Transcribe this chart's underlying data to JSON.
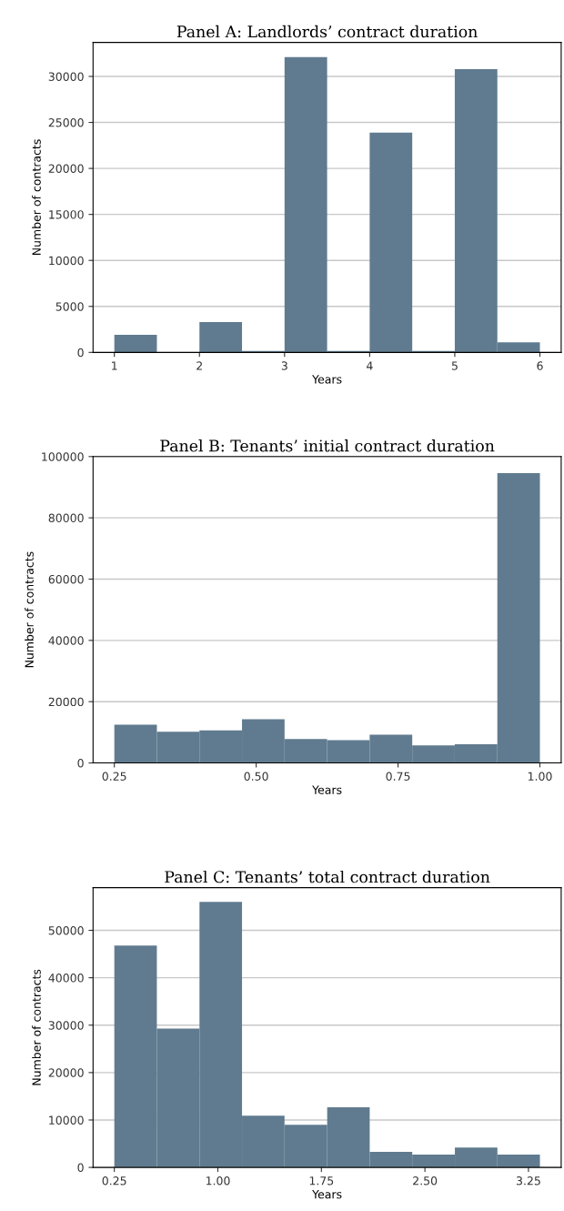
{
  "chart_data": [
    {
      "type": "histogram",
      "title": "Panel A: Landlords’ contract duration",
      "xlabel": "Years",
      "ylabel": "Number of contracts",
      "bins": [
        1,
        1.5,
        2,
        2.5,
        3,
        3.5,
        4,
        4.5,
        5,
        5.5,
        6
      ],
      "values": [
        1900,
        0,
        3300,
        150,
        32100,
        150,
        23900,
        150,
        30800,
        1100
      ],
      "color": "#607b8f",
      "xlim": [
        0.75,
        6.25
      ],
      "xticks": [
        1,
        2,
        3,
        4,
        5,
        6
      ],
      "ylim": [
        0,
        33700
      ],
      "yticks": [
        0,
        5000,
        10000,
        15000,
        20000,
        25000,
        30000
      ],
      "grid": "y"
    },
    {
      "type": "histogram",
      "title": "Panel B: Tenants’ initial contract duration",
      "xlabel": "Years",
      "ylabel": "Number of contracts",
      "bins": [
        0.25,
        0.325,
        0.4,
        0.475,
        0.55,
        0.625,
        0.7,
        0.775,
        0.85,
        0.925,
        1.0
      ],
      "values": [
        12500,
        10200,
        10600,
        14300,
        7800,
        7400,
        9200,
        5700,
        6100,
        94600
      ],
      "color": "#607b8f",
      "xlim": [
        0.2125,
        1.0375
      ],
      "xticks": [
        {
          "value": 0.25,
          "label": "0.25"
        },
        {
          "value": 0.5,
          "label": "0.50"
        },
        {
          "value": 0.75,
          "label": "0.75"
        },
        {
          "value": 1.0,
          "label": "1.00"
        }
      ],
      "ylim": [
        0,
        100000
      ],
      "yticks": [
        0,
        20000,
        40000,
        60000,
        80000,
        100000
      ],
      "grid": "y"
    },
    {
      "type": "histogram",
      "title": "Panel C: Tenants’ total contract duration",
      "xlabel": "Years",
      "ylabel": "Number of contracts",
      "bins": [
        0.25,
        0.558,
        0.867,
        1.175,
        1.483,
        1.792,
        2.1,
        2.408,
        2.717,
        3.025,
        3.333
      ],
      "values": [
        46800,
        29300,
        56000,
        10900,
        9000,
        12700,
        3300,
        2700,
        4200,
        2700
      ],
      "color": "#607b8f",
      "xlim": [
        0.096,
        3.487
      ],
      "xticks": [
        {
          "value": 0.25,
          "label": "0.25"
        },
        {
          "value": 1.0,
          "label": "1.00"
        },
        {
          "value": 1.75,
          "label": "1.75"
        },
        {
          "value": 2.5,
          "label": "2.50"
        },
        {
          "value": 3.25,
          "label": "3.25"
        }
      ],
      "ylim": [
        0,
        59000
      ],
      "yticks": [
        0,
        10000,
        20000,
        30000,
        40000,
        50000
      ],
      "grid": "y"
    }
  ]
}
